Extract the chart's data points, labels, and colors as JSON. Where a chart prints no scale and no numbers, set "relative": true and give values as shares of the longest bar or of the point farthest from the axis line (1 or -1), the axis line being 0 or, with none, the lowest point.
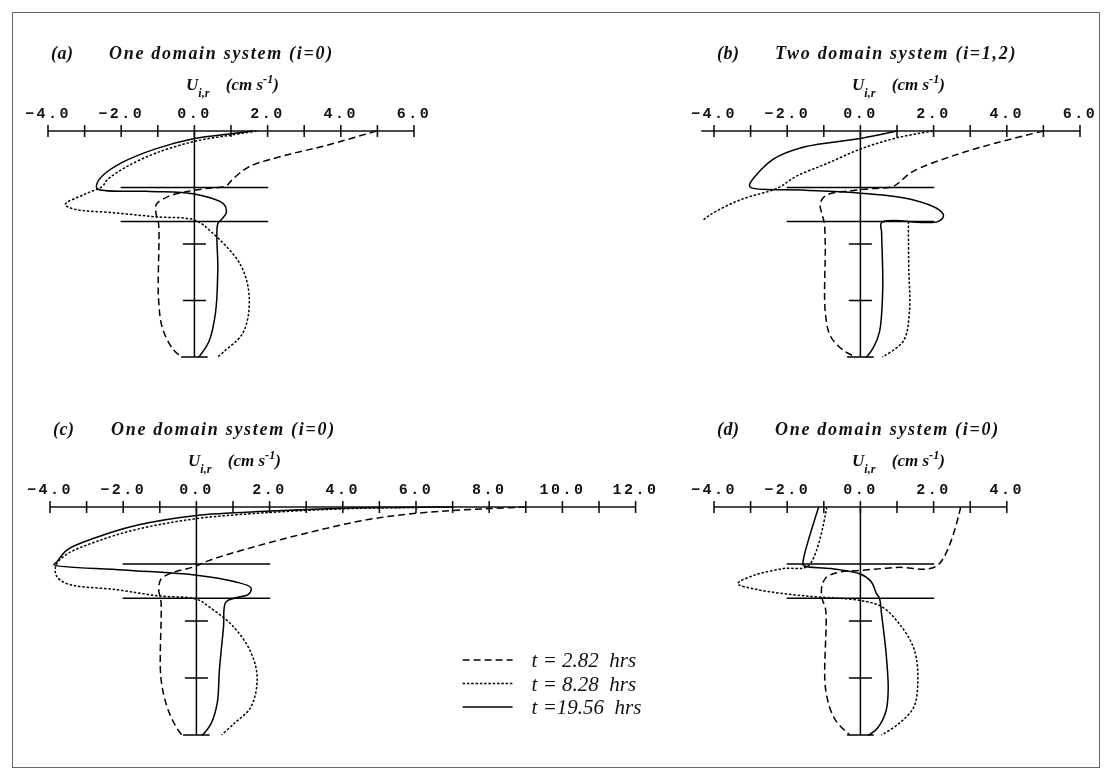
{
  "chart_data": [
    {
      "type": "line",
      "title": "(a) One domain system (i=0)",
      "xlabel": "U$_{i,r}$  (cm s$^{-1}$)",
      "relative": true,
      "tick_labels": "x",
      "xlim": [
        -4,
        6
      ],
      "xticks": [
        {
          "value": -4,
          "label": "−4.0"
        },
        {
          "value": -3,
          "label": null
        },
        {
          "value": -2,
          "label": "−2.0"
        },
        {
          "value": -1,
          "label": null
        },
        {
          "value": 0,
          "label": "0.0"
        },
        {
          "value": 1,
          "label": null
        },
        {
          "value": 2,
          "label": "2.0"
        },
        {
          "value": 3,
          "label": null
        },
        {
          "value": 4,
          "label": "4.0"
        },
        {
          "value": 5,
          "label": null
        },
        {
          "value": 6,
          "label": "6.0"
        }
      ],
      "ref_lines": [
        {
          "axis": "x",
          "value": 0,
          "color": "#000000"
        }
      ],
      "series": [
        {
          "color": "#000000",
          "line_style": "dashed",
          "x": [
            4.97,
            3.58,
            2.43,
            1.5,
            1.04,
            0.87,
            0.3,
            -0.2,
            -0.69,
            -1.04,
            -1.04,
            -0.98,
            -0.98,
            -0.87,
            -0.58,
            -0.35
          ],
          "values": [
            0,
            -0.065,
            -0.11,
            -0.158,
            -0.214,
            -0.242,
            -0.255,
            -0.268,
            -0.288,
            -0.325,
            -0.372,
            -0.409,
            -0.743,
            -0.874,
            -0.967,
            -1
          ]
        },
        {
          "color": "#000000",
          "line_style": "dotted",
          "x": [
            1.7,
            1.0,
            0.0,
            -1.04,
            -1.85,
            -2.37,
            -2.52,
            -3.0,
            -3.53,
            -3.3,
            -2.2,
            -1.04,
            0.0,
            0.46,
            1.27,
            1.5,
            1.33,
            0.81,
            0.64
          ],
          "values": [
            0,
            -0.018,
            -0.046,
            -0.097,
            -0.158,
            -0.214,
            -0.245,
            -0.28,
            -0.325,
            -0.345,
            -0.362,
            -0.38,
            -0.394,
            -0.446,
            -0.595,
            -0.743,
            -0.892,
            -0.976,
            -1
          ]
        },
        {
          "color": "#000000",
          "line_style": "solid",
          "x": [
            1.6,
            1.0,
            0.0,
            -1.04,
            -1.97,
            -2.49,
            -2.66,
            -2.66,
            -1.3,
            0.0,
            0.81,
            0.87,
            0.75,
            0.64,
            0.64,
            0.58,
            0.4,
            0.12
          ],
          "values": [
            0,
            -0.012,
            -0.033,
            -0.078,
            -0.139,
            -0.195,
            -0.232,
            -0.255,
            -0.267,
            -0.279,
            -0.325,
            -0.362,
            -0.39,
            -0.41,
            -0.61,
            -0.8,
            -0.93,
            -1
          ]
        },
        {
          "color": "#000000",
          "x": [
            -2,
            2
          ],
          "values": [
            -0.25,
            -0.25
          ]
        },
        {
          "color": "#000000",
          "x": [
            -2,
            2
          ],
          "values": [
            -0.4,
            -0.4
          ]
        },
        {
          "color": "#000000",
          "x": [
            -0.3,
            0.3
          ],
          "values": [
            -0.5,
            -0.5
          ]
        },
        {
          "color": "#000000",
          "x": [
            -0.3,
            0.3
          ],
          "values": [
            -0.75,
            -0.75
          ]
        },
        {
          "color": "#000000",
          "x": [
            -0.35,
            0.35
          ],
          "values": [
            -1,
            -1
          ]
        }
      ]
    },
    {
      "type": "line",
      "title": "(b) Two domain system (i=1,2)",
      "xlabel": "U$_{i,r}$  (cm s$^{-1}$)",
      "relative": true,
      "tick_labels": "x",
      "xlim": [
        -4.35,
        6
      ],
      "xticks": [
        {
          "value": -4,
          "label": "−4.0"
        },
        {
          "value": -3,
          "label": null
        },
        {
          "value": -2,
          "label": "−2.0"
        },
        {
          "value": -1,
          "label": null
        },
        {
          "value": 0,
          "label": "0.0"
        },
        {
          "value": 1,
          "label": null
        },
        {
          "value": 2,
          "label": "2.0"
        },
        {
          "value": 3,
          "label": null
        },
        {
          "value": 4,
          "label": "4.0"
        },
        {
          "value": 5,
          "label": null
        },
        {
          "value": 6,
          "label": "6.0"
        }
      ],
      "ref_lines": [
        {
          "axis": "x",
          "value": 0,
          "color": "#000000"
        }
      ],
      "series": [
        {
          "color": "#000000",
          "line_style": "dashed",
          "x": [
            5.0,
            3.73,
            2.56,
            1.4,
            1.05,
            0.87,
            0.3,
            -0.3,
            -0.93,
            -1.1,
            -1.05,
            -0.99,
            -0.96,
            -0.96,
            -0.82,
            -0.47,
            -0.12
          ],
          "values": [
            0,
            -0.052,
            -0.108,
            -0.182,
            -0.229,
            -0.247,
            -0.255,
            -0.265,
            -0.284,
            -0.32,
            -0.368,
            -0.405,
            -0.5,
            -0.8,
            -0.907,
            -0.97,
            -1
          ]
        },
        {
          "color": "#000000",
          "line_style": "dotted",
          "x": [
            1.98,
            1.0,
            0.0,
            -0.93,
            -1.75,
            -2.27,
            -3.26,
            -4.08,
            -4.31,
            -1.5,
            1.31,
            1.32,
            1.34,
            1.17,
            0.6
          ],
          "values": [
            0,
            -0.03,
            -0.08,
            -0.145,
            -0.2,
            -0.253,
            -0.303,
            -0.368,
            -0.396,
            null,
            -0.4,
            -0.6,
            -0.8,
            -0.93,
            -1
          ]
        },
        {
          "color": "#000000",
          "line_style": "solid",
          "x": [
            1.0,
            0.0,
            -1.52,
            -2.39,
            -3.03,
            -3.0,
            -1.5,
            0.0,
            1.4,
            2.16,
            2.27,
            2.1,
            0.58,
            0.58,
            0.61,
            0.52,
            0.35,
            0.17
          ],
          "values": [
            0,
            -0.033,
            -0.07,
            -0.126,
            -0.238,
            -0.25,
            -0.262,
            -0.275,
            -0.303,
            -0.35,
            -0.377,
            -0.402,
            -0.405,
            -0.45,
            -0.7,
            -0.89,
            -0.96,
            -1
          ]
        },
        {
          "color": "#000000",
          "x": [
            -2,
            2
          ],
          "values": [
            -0.25,
            -0.25
          ]
        },
        {
          "color": "#000000",
          "x": [
            -2,
            2
          ],
          "values": [
            -0.4,
            -0.4
          ]
        },
        {
          "color": "#000000",
          "x": [
            -0.3,
            0.3
          ],
          "values": [
            -0.5,
            -0.5
          ]
        },
        {
          "color": "#000000",
          "x": [
            -0.3,
            0.3
          ],
          "values": [
            -0.75,
            -0.75
          ]
        },
        {
          "color": "#000000",
          "x": [
            -0.35,
            0.35
          ],
          "values": [
            -1,
            -1
          ]
        }
      ]
    },
    {
      "type": "line",
      "title": "(c) One domain system (i=0)",
      "xlabel": "U$_{i,r}$  (cm s$^{-1}$)",
      "relative": true,
      "tick_labels": "x",
      "xlim": [
        -4,
        12
      ],
      "legend": "bottom right",
      "xticks": [
        {
          "value": -4,
          "label": "−4.0"
        },
        {
          "value": -3,
          "label": null
        },
        {
          "value": -2,
          "label": "−2.0"
        },
        {
          "value": -1,
          "label": null
        },
        {
          "value": 0,
          "label": "0.0"
        },
        {
          "value": 1,
          "label": null
        },
        {
          "value": 2,
          "label": "2.0"
        },
        {
          "value": 3,
          "label": null
        },
        {
          "value": 4,
          "label": "4.0"
        },
        {
          "value": 5,
          "label": null
        },
        {
          "value": 6,
          "label": "6.0"
        },
        {
          "value": 7,
          "label": null
        },
        {
          "value": 8,
          "label": "8.0"
        },
        {
          "value": 9,
          "label": null
        },
        {
          "value": 10,
          "label": "10.0"
        },
        {
          "value": 11,
          "label": null
        },
        {
          "value": 12,
          "label": "12.0"
        }
      ],
      "ref_lines": [
        {
          "axis": "x",
          "value": 0,
          "color": "#000000"
        }
      ],
      "series": [
        {
          "name": "t = 2.82  hrs",
          "color": "#000000",
          "line_style": "dashed",
          "x": [
            9.0,
            8.02,
            7.02,
            5.93,
            4.69,
            2.97,
            1.26,
            0.34,
            -0.06,
            -0.69,
            -0.97,
            -1.03,
            -0.97,
            -0.97,
            -0.8,
            -0.57,
            -0.4
          ],
          "values": [
            0,
            -0.007,
            -0.015,
            -0.029,
            -0.055,
            -0.116,
            -0.189,
            -0.235,
            -0.262,
            -0.29,
            -0.317,
            -0.363,
            -0.409,
            -0.749,
            -0.877,
            -0.96,
            -1
          ]
        },
        {
          "name": "t = 8.28  hrs",
          "color": "#000000",
          "line_style": "dotted",
          "x": [
            7.0,
            5.5,
            4.0,
            2.0,
            0.0,
            -1.6,
            -2.74,
            -3.54,
            -3.83,
            -3.83,
            -3.54,
            -2.17,
            -1.03,
            0.0,
            0.34,
            1.03,
            1.49,
            1.66,
            1.49,
            1.03,
            0.69
          ],
          "values": [
            0,
            -0.003,
            -0.008,
            -0.024,
            -0.051,
            -0.097,
            -0.152,
            -0.207,
            -0.253,
            -0.3,
            -0.336,
            -0.363,
            -0.39,
            -0.404,
            -0.437,
            -0.528,
            -0.638,
            -0.749,
            -0.877,
            -0.95,
            -1
          ]
        },
        {
          "name": "t =19.56  hrs",
          "color": "#000000",
          "line_style": "solid",
          "x": [
            7.0,
            5.5,
            4.0,
            2.0,
            0.0,
            -1.6,
            -2.74,
            -3.54,
            -3.83,
            -3.89,
            -2.0,
            0.0,
            1.03,
            1.49,
            1.43,
            1.03,
            0.8,
            0.74,
            0.63,
            0.57,
            0.4,
            0.17
          ],
          "values": [
            0,
            -0.002,
            -0.005,
            -0.018,
            -0.037,
            -0.079,
            -0.134,
            -0.189,
            -0.244,
            -0.253,
            -0.276,
            -0.299,
            -0.327,
            -0.354,
            -0.382,
            -0.4,
            -0.418,
            -0.528,
            -0.712,
            -0.859,
            -0.95,
            -1
          ]
        },
        {
          "color": "#000000",
          "x": [
            -2,
            2
          ],
          "values": [
            -0.25,
            -0.25
          ]
        },
        {
          "color": "#000000",
          "x": [
            -2,
            2
          ],
          "values": [
            -0.4,
            -0.4
          ]
        },
        {
          "color": "#000000",
          "x": [
            -0.3,
            0.3
          ],
          "values": [
            -0.5,
            -0.5
          ]
        },
        {
          "color": "#000000",
          "x": [
            -0.3,
            0.3
          ],
          "values": [
            -0.75,
            -0.75
          ]
        },
        {
          "color": "#000000",
          "x": [
            -0.35,
            0.35
          ],
          "values": [
            -1,
            -1
          ]
        }
      ]
    },
    {
      "type": "line",
      "title": "(d) One domain system (i=0)",
      "xlabel": "U$_{i,r}$  (cm s$^{-1}$)",
      "relative": true,
      "tick_labels": "x",
      "xlim": [
        -4,
        4
      ],
      "xticks": [
        {
          "value": -4,
          "label": "−4.0"
        },
        {
          "value": -3,
          "label": null
        },
        {
          "value": -2,
          "label": "−2.0"
        },
        {
          "value": -1,
          "label": null
        },
        {
          "value": 0,
          "label": "0.0"
        },
        {
          "value": 1,
          "label": null
        },
        {
          "value": 2,
          "label": "2.0"
        },
        {
          "value": 3,
          "label": null
        },
        {
          "value": 4,
          "label": "4.0"
        }
      ],
      "ref_lines": [
        {
          "axis": "x",
          "value": 0,
          "color": "#000000"
        }
      ],
      "series": [
        {
          "color": "#000000",
          "line_style": "dashed",
          "x": [
            2.74,
            2.1,
            1.0,
            0.0,
            -0.58,
            -0.93,
            -1.05,
            -1.05,
            -0.95,
            -0.95,
            -0.7,
            -0.29
          ],
          "values": [
            0,
            -0.257,
            -0.265,
            -0.278,
            -0.286,
            -0.308,
            -0.345,
            -0.4,
            -0.45,
            -0.8,
            -0.93,
            -1
          ]
        },
        {
          "color": "#000000",
          "line_style": "dotted",
          "x": [
            -0.92,
            -1.42,
            -2.1,
            -2.91,
            -3.35,
            -2.79,
            -1.51,
            0.0,
            0.58,
            1.05,
            1.46,
            1.57,
            1.46,
            1.05,
            0.58
          ],
          "values": [
            0,
            -0.257,
            -0.27,
            -0.3,
            -0.336,
            -0.363,
            -0.39,
            -0.41,
            -0.437,
            -0.51,
            -0.62,
            -0.75,
            -0.877,
            -0.95,
            -1
          ]
        },
        {
          "color": "#000000",
          "line_style": "solid",
          "x": [
            -1.14,
            -1.57,
            -1.55,
            -0.8,
            0.0,
            0.29,
            0.44,
            0.52,
            0.58,
            0.7,
            0.76,
            0.7,
            0.47,
            0.23
          ],
          "values": [
            0,
            -0.244,
            -0.257,
            -0.27,
            -0.294,
            -0.327,
            -0.38,
            -0.4,
            -0.473,
            -0.638,
            -0.8,
            -0.895,
            -0.969,
            -1
          ]
        },
        {
          "color": "#000000",
          "x": [
            -2,
            2
          ],
          "values": [
            -0.25,
            -0.25
          ]
        },
        {
          "color": "#000000",
          "x": [
            -2,
            2
          ],
          "values": [
            -0.4,
            -0.4
          ]
        },
        {
          "color": "#000000",
          "x": [
            -0.3,
            0.3
          ],
          "values": [
            -0.5,
            -0.5
          ]
        },
        {
          "color": "#000000",
          "x": [
            -0.3,
            0.3
          ],
          "values": [
            -0.75,
            -0.75
          ]
        },
        {
          "color": "#000000",
          "x": [
            -0.35,
            0.35
          ],
          "values": [
            -1,
            -1
          ]
        }
      ]
    }
  ]
}
